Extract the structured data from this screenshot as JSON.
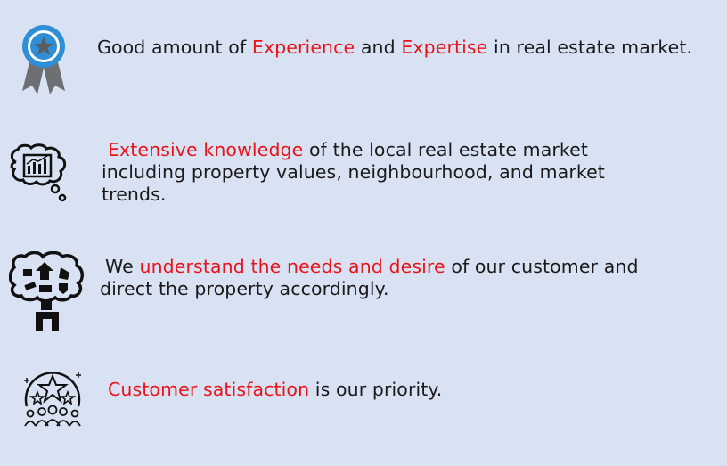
{
  "colors": {
    "background": "#d9e2f3",
    "text": "#1a1a1a",
    "highlight": "#e8141b"
  },
  "items": [
    {
      "icon": "award-ribbon-icon",
      "parts": [
        "Good amount of ",
        "Experience",
        " and ",
        "Expertise",
        " in real estate market."
      ]
    },
    {
      "icon": "brain-analytics-icon",
      "parts": [
        "Extensive knowledge",
        " of the local real estate market",
        "including property values, neighbourhood, and market",
        "trends."
      ]
    },
    {
      "icon": "customer-needs-icon",
      "parts": [
        "We ",
        "understand the needs and desire",
        " of our customer and",
        "direct the property accordingly."
      ]
    },
    {
      "icon": "customer-satisfaction-icon",
      "parts": [
        "Customer satisfaction",
        " is our priority."
      ]
    }
  ]
}
